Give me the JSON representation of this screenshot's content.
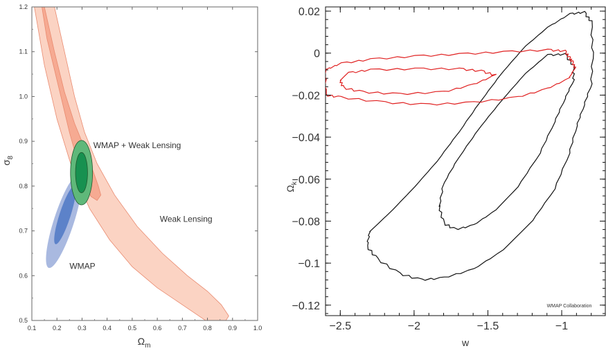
{
  "chart_data": [
    {
      "type": "contour",
      "xlabel_main": "Ω",
      "xlabel_sub": "m",
      "ylabel_main": "σ",
      "ylabel_sub": "8",
      "xlim": [
        0.1,
        1.0
      ],
      "ylim": [
        0.5,
        1.2
      ],
      "xticks": [
        "0.1",
        "0.2",
        "0.3",
        "0.4",
        "0.5",
        "0.6",
        "0.7",
        "0.8",
        "0.9",
        "1.0"
      ],
      "yticks": [
        "0.5",
        "0.6",
        "0.7",
        "0.8",
        "0.9",
        "1.0",
        "1.1",
        "1.2"
      ],
      "colors": {
        "weak_lensing_outer": "#fbd3c3",
        "weak_lensing_inner": "#f6aa92",
        "weak_lensing_edge": "#e98a6f",
        "wmap_outer": "#a9b9e0",
        "wmap_inner": "#5c82c9",
        "combined_outer": "#5fb87a",
        "combined_inner": "#179150"
      },
      "contour_labels": [
        {
          "text": "WMAP + Weak Lensing",
          "x": 0.345,
          "y": 0.885
        },
        {
          "text": "Weak Lensing",
          "x": 0.61,
          "y": 0.72
        },
        {
          "text": "WMAP",
          "x": 0.25,
          "y": 0.615
        }
      ],
      "regions": [
        {
          "id": "weak-lensing-outer",
          "fill": "weak_lensing_outer",
          "stroke": "weak_lensing_edge",
          "points": [
            [
              0.19,
              1.2
            ],
            [
              0.23,
              1.1
            ],
            [
              0.27,
              1.0
            ],
            [
              0.31,
              0.92
            ],
            [
              0.36,
              0.85
            ],
            [
              0.43,
              0.78
            ],
            [
              0.52,
              0.71
            ],
            [
              0.62,
              0.65
            ],
            [
              0.72,
              0.6
            ],
            [
              0.8,
              0.565
            ],
            [
              0.855,
              0.535
            ],
            [
              0.885,
              0.51
            ],
            [
              0.87,
              0.497
            ],
            [
              0.8,
              0.497
            ],
            [
              0.7,
              0.535
            ],
            [
              0.6,
              0.573
            ],
            [
              0.5,
              0.62
            ],
            [
              0.41,
              0.68
            ],
            [
              0.33,
              0.75
            ],
            [
              0.26,
              0.84
            ],
            [
              0.2,
              0.95
            ],
            [
              0.15,
              1.07
            ],
            [
              0.11,
              1.2
            ]
          ]
        },
        {
          "id": "weak-lensing-inner",
          "fill": "weak_lensing_inner",
          "stroke": "weak_lensing_edge",
          "points": [
            [
              0.15,
              1.2
            ],
            [
              0.19,
              1.1
            ],
            [
              0.23,
              1.01
            ],
            [
              0.27,
              0.94
            ],
            [
              0.31,
              0.885
            ],
            [
              0.34,
              0.84
            ],
            [
              0.365,
              0.8
            ],
            [
              0.375,
              0.78
            ],
            [
              0.36,
              0.768
            ],
            [
              0.335,
              0.777
            ],
            [
              0.31,
              0.81
            ],
            [
              0.285,
              0.85
            ],
            [
              0.25,
              0.92
            ],
            [
              0.22,
              0.99
            ],
            [
              0.19,
              1.06
            ],
            [
              0.16,
              1.13
            ],
            [
              0.14,
              1.2
            ]
          ]
        }
      ],
      "ellipses": [
        {
          "id": "wmap-outer",
          "fill": "wmap_outer",
          "cx": 0.228,
          "cy": 0.722,
          "semi_x": 0.04,
          "semi_y": 0.11,
          "tilt_deg": 18
        },
        {
          "id": "wmap-inner",
          "fill": "wmap_inner",
          "cx": 0.232,
          "cy": 0.735,
          "semi_x": 0.022,
          "semi_y": 0.068,
          "tilt_deg": 18
        },
        {
          "id": "combined-outer",
          "fill": "combined_outer",
          "cx": 0.298,
          "cy": 0.83,
          "semi_x": 0.044,
          "semi_y": 0.072,
          "tilt_deg": 0
        },
        {
          "id": "combined-inner",
          "fill": "combined_inner",
          "cx": 0.298,
          "cy": 0.83,
          "semi_x": 0.024,
          "semi_y": 0.045,
          "tilt_deg": 0
        }
      ]
    },
    {
      "type": "contour",
      "xlabel": "w",
      "ylabel_main": "Ω",
      "ylabel_sub": "k",
      "xlim": [
        -2.6,
        -0.7
      ],
      "ylim": [
        -0.125,
        0.022
      ],
      "xticks": [
        -2.5,
        -2,
        -1.5,
        -1
      ],
      "xtick_labels": [
        "−2.5",
        "−2",
        "−1.5",
        "−1"
      ],
      "yticks": [
        0.02,
        0,
        -0.02,
        -0.04,
        -0.06,
        -0.08,
        -0.1,
        -0.12
      ],
      "ytick_labels": [
        "0.02",
        "0",
        "−0.02",
        "−0.04",
        "−0.06",
        "−0.08",
        "−0.1",
        "−0.12"
      ],
      "annotation": "WMAP Collaboration",
      "colors": {
        "black_contour": "#111111",
        "red_contour": "#e02020"
      },
      "contours": [
        {
          "id": "black-outer",
          "color": "black_contour",
          "points": [
            [
              -2.3,
              -0.085
            ],
            [
              -2.15,
              -0.075
            ],
            [
              -2.0,
              -0.064
            ],
            [
              -1.85,
              -0.052
            ],
            [
              -1.7,
              -0.038
            ],
            [
              -1.55,
              -0.023
            ],
            [
              -1.4,
              -0.009
            ],
            [
              -1.25,
              0.003
            ],
            [
              -1.1,
              0.012
            ],
            [
              -0.95,
              0.0185
            ],
            [
              -0.85,
              0.0195
            ],
            [
              -0.8,
              0.015
            ],
            [
              -0.79,
              0.0
            ],
            [
              -0.8,
              -0.015
            ],
            [
              -0.85,
              -0.025
            ],
            [
              -0.9,
              -0.035
            ],
            [
              -0.95,
              -0.048
            ],
            [
              -1.05,
              -0.065
            ],
            [
              -1.2,
              -0.08
            ],
            [
              -1.4,
              -0.094
            ],
            [
              -1.6,
              -0.103
            ],
            [
              -1.8,
              -0.107
            ],
            [
              -1.95,
              -0.108
            ],
            [
              -2.1,
              -0.105
            ],
            [
              -2.25,
              -0.098
            ],
            [
              -2.32,
              -0.092
            ]
          ]
        },
        {
          "id": "black-inner",
          "color": "black_contour",
          "points": [
            [
              -1.83,
              -0.073
            ],
            [
              -1.8,
              -0.062
            ],
            [
              -1.7,
              -0.05
            ],
            [
              -1.55,
              -0.035
            ],
            [
              -1.4,
              -0.022
            ],
            [
              -1.25,
              -0.01
            ],
            [
              -1.1,
              -0.001
            ],
            [
              -0.98,
              -0.0005
            ],
            [
              -0.92,
              -0.006
            ],
            [
              -0.92,
              -0.013
            ],
            [
              -0.98,
              -0.022
            ],
            [
              -1.05,
              -0.033
            ],
            [
              -1.15,
              -0.048
            ],
            [
              -1.3,
              -0.064
            ],
            [
              -1.45,
              -0.075
            ],
            [
              -1.6,
              -0.082
            ],
            [
              -1.72,
              -0.084
            ],
            [
              -1.8,
              -0.081
            ]
          ]
        },
        {
          "id": "red-outer",
          "color": "red_contour",
          "points": [
            [
              -2.6,
              -0.008
            ],
            [
              -2.5,
              -0.005
            ],
            [
              -2.3,
              -0.003
            ],
            [
              -2.0,
              -0.0015
            ],
            [
              -1.7,
              -0.0005
            ],
            [
              -1.4,
              0.0005
            ],
            [
              -1.1,
              0.0015
            ],
            [
              -0.98,
              0.001
            ],
            [
              -0.95,
              -0.002
            ],
            [
              -0.93,
              -0.004
            ],
            [
              -0.91,
              -0.007
            ],
            [
              -0.95,
              -0.012
            ],
            [
              -1.1,
              -0.017
            ],
            [
              -1.3,
              -0.021
            ],
            [
              -1.6,
              -0.0235
            ],
            [
              -1.9,
              -0.0245
            ],
            [
              -2.2,
              -0.0235
            ],
            [
              -2.5,
              -0.021
            ],
            [
              -2.6,
              -0.02
            ]
          ]
        },
        {
          "id": "red-inner",
          "color": "red_contour",
          "points": [
            [
              -2.5,
              -0.013
            ],
            [
              -2.45,
              -0.0095
            ],
            [
              -2.3,
              -0.008
            ],
            [
              -2.0,
              -0.0075
            ],
            [
              -1.7,
              -0.0075
            ],
            [
              -1.55,
              -0.0085
            ],
            [
              -1.45,
              -0.0105
            ],
            [
              -1.6,
              -0.015
            ],
            [
              -1.8,
              -0.0185
            ],
            [
              -2.1,
              -0.0195
            ],
            [
              -2.35,
              -0.0185
            ],
            [
              -2.48,
              -0.0165
            ]
          ]
        }
      ]
    }
  ]
}
